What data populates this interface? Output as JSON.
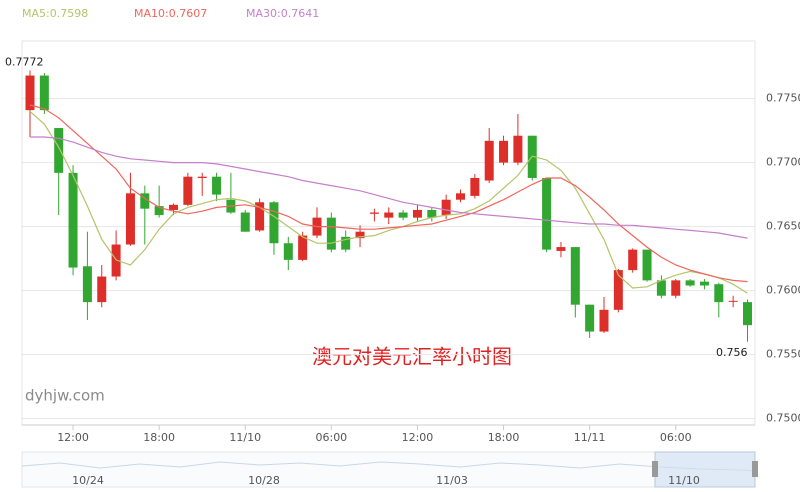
{
  "chart_data": {
    "type": "candlestick",
    "title": "澳元对美元汇率小时图",
    "watermark": "dyhjw.com",
    "categories": [
      null,
      null,
      null,
      "12:00",
      null,
      null,
      null,
      null,
      null,
      "18:00",
      null,
      null,
      null,
      null,
      null,
      "11/10",
      null,
      null,
      null,
      null,
      null,
      "06:00",
      null,
      null,
      null,
      null,
      null,
      "12:00",
      null,
      null,
      null,
      null,
      null,
      "18:00",
      null,
      null,
      null,
      null,
      null,
      "11/11",
      null,
      null,
      null,
      null,
      null,
      "06:00",
      null,
      null,
      null,
      null,
      null
    ],
    "candles": {
      "open": [
        0.7741,
        0.7768,
        0.7727,
        0.7692,
        0.7619,
        0.7591,
        0.7611,
        0.7636,
        0.7676,
        0.7666,
        0.7663,
        0.7667,
        0.7688,
        0.7689,
        0.7671,
        0.7661,
        0.7647,
        0.7669,
        0.7637,
        0.7624,
        0.7643,
        0.7657,
        0.7642,
        0.7641,
        0.766,
        0.7657,
        0.7661,
        0.7657,
        0.7663,
        0.7659,
        0.7671,
        0.7674,
        0.7686,
        0.77,
        0.77,
        0.7721,
        0.7688,
        0.7631,
        0.7634,
        0.7589,
        0.7568,
        0.7585,
        0.7616,
        0.7632,
        0.7608,
        0.7596,
        0.7608,
        0.7607,
        0.7605,
        0.7592,
        0.7591
      ],
      "high": [
        0.7772,
        0.777,
        0.7727,
        0.7698,
        0.7646,
        0.762,
        0.7647,
        0.7692,
        0.7682,
        0.7682,
        0.7668,
        0.7692,
        0.7692,
        0.7692,
        0.7692,
        0.7663,
        0.7672,
        0.767,
        0.7642,
        0.7646,
        0.7665,
        0.7661,
        0.7647,
        0.7651,
        0.7664,
        0.7665,
        0.7663,
        0.7667,
        0.7665,
        0.7675,
        0.7679,
        0.7691,
        0.7727,
        0.7721,
        0.7738,
        0.7721,
        0.7688,
        0.7638,
        0.7634,
        0.7589,
        0.7595,
        0.7617,
        0.7633,
        0.7632,
        0.7612,
        0.7609,
        0.7609,
        0.7609,
        0.7606,
        0.7596,
        0.7593
      ],
      "low": [
        0.772,
        0.7738,
        0.7659,
        0.7612,
        0.7577,
        0.7587,
        0.7608,
        0.7635,
        0.7636,
        0.7657,
        0.7659,
        0.7666,
        0.7674,
        0.767,
        0.766,
        0.7646,
        0.7646,
        0.7628,
        0.7616,
        0.7623,
        0.7641,
        0.763,
        0.763,
        0.7634,
        0.7654,
        0.7652,
        0.7655,
        0.7654,
        0.7654,
        0.7656,
        0.7669,
        0.7672,
        0.7684,
        0.7698,
        0.7698,
        0.7686,
        0.763,
        0.7626,
        0.7579,
        0.7563,
        0.7567,
        0.7583,
        0.7614,
        0.7607,
        0.7594,
        0.7594,
        0.7603,
        0.7601,
        0.7579,
        0.7587,
        0.756
      ],
      "close": [
        0.7768,
        0.7741,
        0.7692,
        0.7618,
        0.7591,
        0.7611,
        0.7636,
        0.7676,
        0.7664,
        0.7659,
        0.7667,
        0.7689,
        0.7689,
        0.7675,
        0.7661,
        0.7646,
        0.7669,
        0.7637,
        0.7624,
        0.7643,
        0.7657,
        0.7632,
        0.7632,
        0.7646,
        0.7661,
        0.7661,
        0.7657,
        0.7663,
        0.7657,
        0.7671,
        0.7676,
        0.7688,
        0.7717,
        0.7717,
        0.7721,
        0.7688,
        0.7632,
        0.7634,
        0.7589,
        0.7568,
        0.7585,
        0.7616,
        0.7632,
        0.7608,
        0.7596,
        0.7608,
        0.7604,
        0.7604,
        0.7591,
        0.7592,
        0.7573
      ]
    },
    "up_color": "#de2e2a",
    "down_color": "#31a731",
    "series": [
      {
        "name": "MA5:0.7598",
        "color": "#b5c46a",
        "values": [
          0.774,
          0.773,
          0.7712,
          0.769,
          0.7666,
          0.764,
          0.7624,
          0.762,
          0.7632,
          0.7648,
          0.766,
          0.7665,
          0.7668,
          0.7671,
          0.7672,
          0.767,
          0.7665,
          0.7658,
          0.765,
          0.7642,
          0.7637,
          0.7637,
          0.764,
          0.7642,
          0.7643,
          0.7647,
          0.765,
          0.7654,
          0.7657,
          0.7659,
          0.766,
          0.7664,
          0.767,
          0.768,
          0.769,
          0.7705,
          0.7702,
          0.7694,
          0.768,
          0.766,
          0.764,
          0.7612,
          0.7602,
          0.7603,
          0.7608,
          0.7612,
          0.7615,
          0.7613,
          0.761,
          0.7605,
          0.7598
        ]
      },
      {
        "name": "MA10:0.7607",
        "color": "#f0655a",
        "values": [
          0.7745,
          0.7742,
          0.7735,
          0.7725,
          0.7715,
          0.7705,
          0.7695,
          0.768,
          0.7672,
          0.7665,
          0.7662,
          0.766,
          0.7662,
          0.7665,
          0.7666,
          0.7667,
          0.7665,
          0.7662,
          0.7658,
          0.7652,
          0.765,
          0.765,
          0.7649,
          0.7648,
          0.7648,
          0.7649,
          0.765,
          0.7651,
          0.7652,
          0.7655,
          0.7658,
          0.7661,
          0.7666,
          0.7671,
          0.7677,
          0.7683,
          0.7688,
          0.7688,
          0.7682,
          0.7673,
          0.7663,
          0.7652,
          0.7643,
          0.7634,
          0.7626,
          0.762,
          0.7616,
          0.7613,
          0.761,
          0.7608,
          0.7607
        ]
      },
      {
        "name": "MA30:0.7641",
        "color": "#c67fcb",
        "values": [
          0.772,
          0.772,
          0.7719,
          0.7716,
          0.7712,
          0.7708,
          0.7705,
          0.7703,
          0.7702,
          0.7701,
          0.77,
          0.77,
          0.77,
          0.7699,
          0.7697,
          0.7695,
          0.7693,
          0.7691,
          0.7689,
          0.7686,
          0.7684,
          0.7682,
          0.768,
          0.7678,
          0.7675,
          0.7672,
          0.7669,
          0.7667,
          0.7665,
          0.7663,
          0.7661,
          0.766,
          0.7659,
          0.7658,
          0.7657,
          0.7656,
          0.7655,
          0.7654,
          0.7653,
          0.7652,
          0.7652,
          0.7651,
          0.7651,
          0.765,
          0.7649,
          0.7648,
          0.7647,
          0.7646,
          0.7645,
          0.7643,
          0.7641
        ]
      }
    ],
    "ylim": [
      0.7495,
      0.7795
    ],
    "yticks": [
      {
        "value": 0.75,
        "label": "0.7500"
      },
      {
        "value": 0.755,
        "label": "0.7550"
      },
      {
        "value": 0.76,
        "label": "0.7600"
      },
      {
        "value": 0.765,
        "label": "0.7650"
      },
      {
        "value": 0.77,
        "label": "0.7700"
      },
      {
        "value": 0.775,
        "label": "0.7750"
      }
    ],
    "grid": true,
    "navigator": {
      "labels": [
        "10/24",
        "10/28",
        "11/03",
        "11/10"
      ]
    }
  }
}
